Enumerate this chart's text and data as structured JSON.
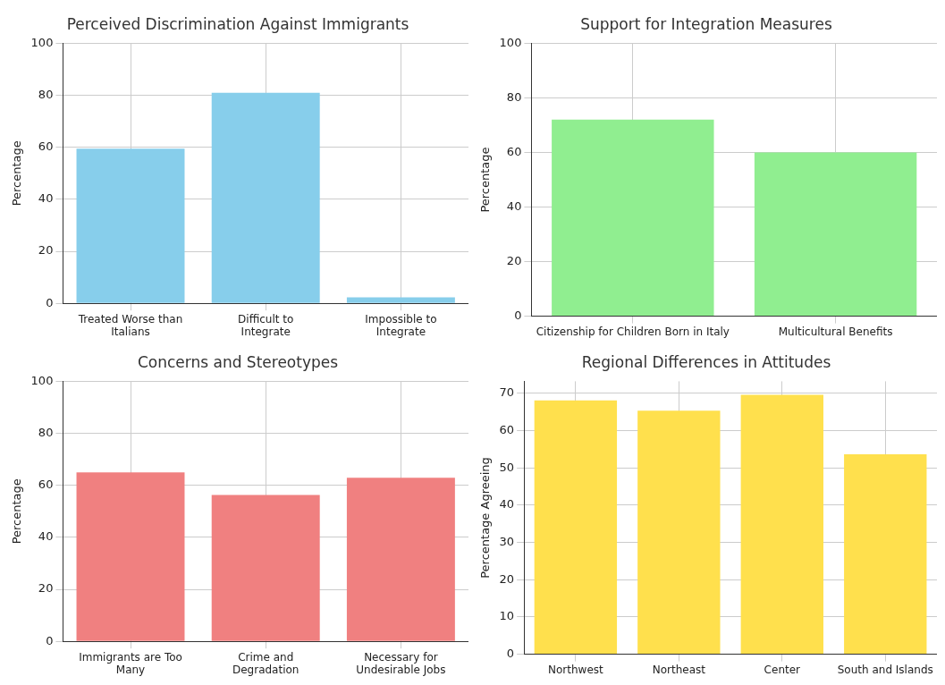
{
  "chart_data": [
    {
      "type": "bar",
      "title": "Perceived Discrimination Against Immigrants",
      "ylabel": "Percentage",
      "categories": [
        "Treated Worse than Italians",
        "Difficult to Integrate",
        "Impossible to Integrate"
      ],
      "values": [
        59.5,
        81,
        2.3
      ],
      "color": "#87ceeb",
      "ylim": [
        0,
        100
      ],
      "yticks": [
        0,
        20,
        40,
        60,
        80,
        100
      ],
      "grid": true
    },
    {
      "type": "bar",
      "title": "Support for Integration Measures",
      "ylabel": "Percentage",
      "categories": [
        "Citizenship for Children Born in Italy",
        "Multicultural Benefits"
      ],
      "values": [
        72,
        60
      ],
      "color": "#90ee90",
      "ylim": [
        0,
        100
      ],
      "yticks": [
        0,
        20,
        40,
        60,
        80,
        100
      ],
      "grid": true
    },
    {
      "type": "bar",
      "title": "Concerns and Stereotypes",
      "ylabel": "Percentage",
      "categories": [
        "Immigrants are Too Many",
        "Crime and Degradation",
        "Necessary for Undesirable Jobs"
      ],
      "values": [
        65,
        56.3,
        62.9
      ],
      "color": "#f08080",
      "ylim": [
        0,
        100
      ],
      "yticks": [
        0,
        20,
        40,
        60,
        80,
        100
      ],
      "grid": true
    },
    {
      "type": "bar",
      "title": "Regional Differences in Attitudes",
      "ylabel": "Percentage Agreeing",
      "categories": [
        "Northwest",
        "Northeast",
        "Center",
        "South and Islands"
      ],
      "values": [
        68.1,
        65.3,
        69.6,
        53.6
      ],
      "color": "#ffe04d",
      "ylim": [
        0,
        73.2
      ],
      "yticks": [
        0,
        10,
        20,
        30,
        40,
        50,
        60,
        70
      ],
      "grid": true
    }
  ]
}
